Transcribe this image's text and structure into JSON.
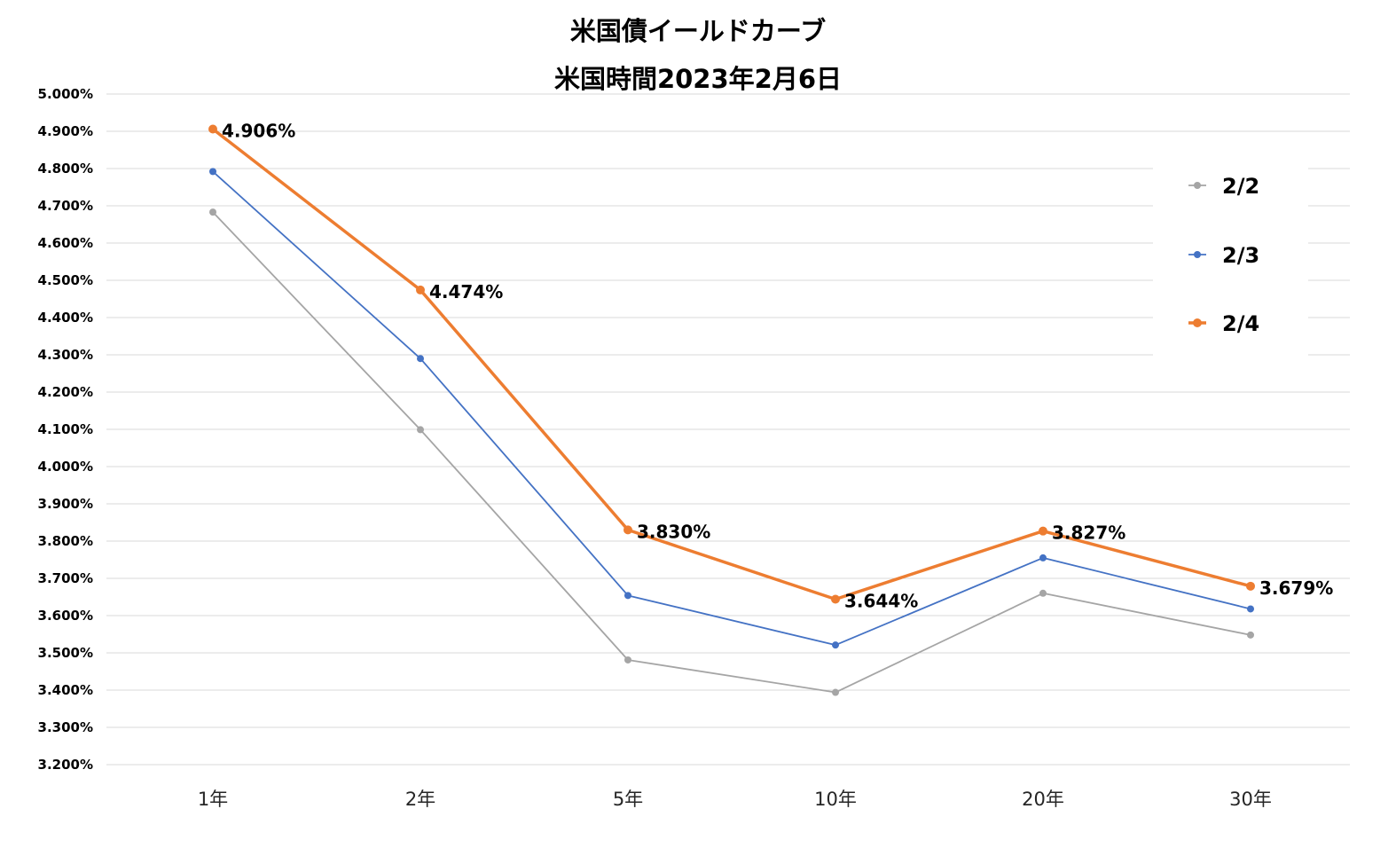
{
  "colors": {
    "grid": "#d9d9d9",
    "text": "#000000"
  },
  "chart_data": {
    "type": "line",
    "title": "米国債イールドカーブ",
    "subtitle": "米国時間2023年2月6日",
    "xlabel": "",
    "ylabel": "",
    "categories": [
      "1年",
      "2年",
      "5年",
      "10年",
      "20年",
      "30年"
    ],
    "ylim": [
      3.2,
      5.0
    ],
    "ytick_step": 0.1,
    "ytick_format": "%.3f%",
    "grid": true,
    "legend_position": "right",
    "series": [
      {
        "name": "2/2",
        "color": "#a5a5a5",
        "width": "thin",
        "values": [
          4.683,
          4.099,
          3.481,
          3.394,
          3.66,
          3.548
        ],
        "show_labels": false
      },
      {
        "name": "2/3",
        "color": "#4472c4",
        "width": "thin",
        "values": [
          4.792,
          4.29,
          3.654,
          3.521,
          3.755,
          3.618
        ],
        "show_labels": false
      },
      {
        "name": "2/4",
        "color": "#ed7d31",
        "width": "thick",
        "values": [
          4.906,
          4.474,
          3.83,
          3.644,
          3.827,
          3.679
        ],
        "show_labels": true,
        "labels": [
          "4.906%",
          "4.474%",
          "3.830%",
          "3.644%",
          "3.827%",
          "3.679%"
        ]
      }
    ]
  }
}
